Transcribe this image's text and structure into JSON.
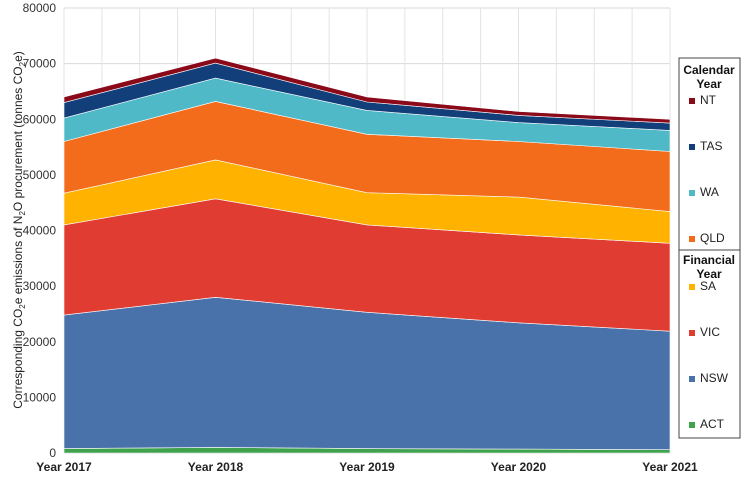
{
  "chart_data": {
    "type": "area",
    "stacked": true,
    "categories": [
      "Year 2017",
      "Year 2018",
      "Year 2019",
      "Year 2020",
      "Year 2021"
    ],
    "ylabel_parts": {
      "a": "Corresponding CO",
      "a_sub": "2",
      "b": "e emissions of N",
      "b_sub": "2",
      "c": "O procurement (tonnes CO",
      "c_sub": "2",
      "d": "e)"
    },
    "ylim": [
      0,
      80000
    ],
    "yticks": [
      0,
      10000,
      20000,
      30000,
      40000,
      50000,
      60000,
      70000,
      80000
    ],
    "grid": true,
    "series": [
      {
        "name": "ACT",
        "color": "#3fa34d",
        "values": [
          800,
          1000,
          800,
          700,
          600
        ]
      },
      {
        "name": "NSW",
        "color": "#4a72aa",
        "values": [
          24000,
          27000,
          24500,
          22700,
          21300
        ]
      },
      {
        "name": "VIC",
        "color": "#e03c31",
        "values": [
          16200,
          17700,
          15700,
          15800,
          15800
        ]
      },
      {
        "name": "SA",
        "color": "#ffb200",
        "values": [
          5700,
          7000,
          5800,
          6800,
          5700
        ]
      },
      {
        "name": "QLD",
        "color": "#f26c1c",
        "values": [
          9300,
          10500,
          10500,
          10000,
          10800
        ]
      },
      {
        "name": "WA",
        "color": "#4fb9c7",
        "values": [
          4200,
          4200,
          4300,
          3400,
          3800
        ]
      },
      {
        "name": "TAS",
        "color": "#123f7a",
        "values": [
          2800,
          2700,
          1500,
          1300,
          1300
        ]
      },
      {
        "name": "NT",
        "color": "#8b0a1a",
        "values": [
          1000,
          900,
          900,
          700,
          700
        ]
      }
    ],
    "legend": {
      "group1_title_lines": [
        "Calendar",
        "Year"
      ],
      "group1_series": [
        "NT",
        "TAS",
        "WA",
        "QLD"
      ],
      "group2_title_lines": [
        "Financial",
        "Year"
      ],
      "group2_series": [
        "SA",
        "VIC",
        "NSW",
        "ACT"
      ],
      "placement": "right"
    }
  }
}
